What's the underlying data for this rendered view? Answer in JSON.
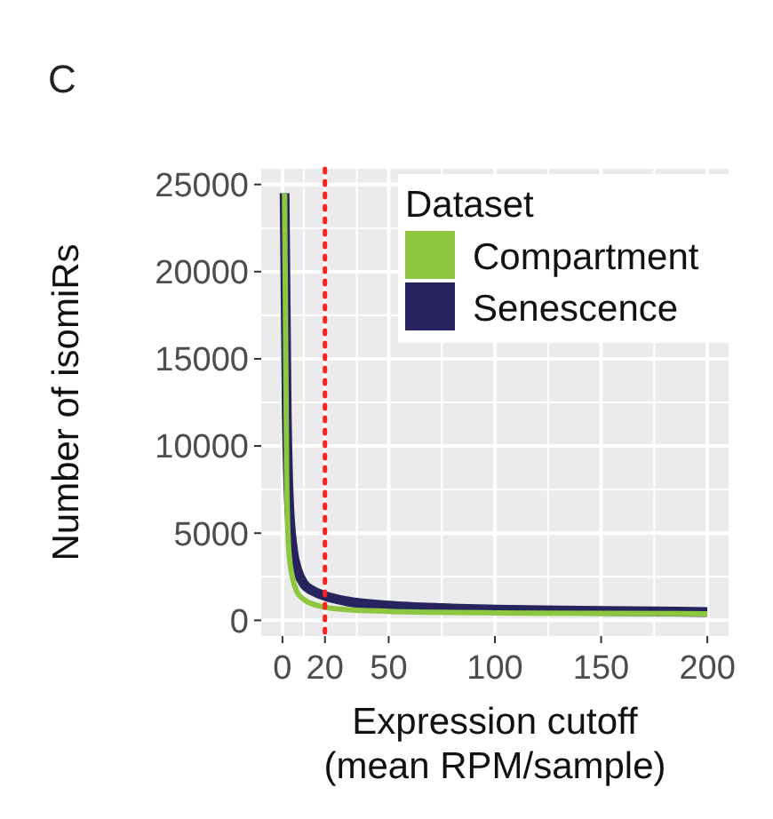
{
  "chart_data": {
    "type": "line",
    "title": "C",
    "xlabel": "Expression cutoff\n(mean RPM/sample)",
    "ylabel": "Number of isomiRs",
    "legend_title": "Dataset",
    "series": [
      {
        "name": "Compartment",
        "color": "#8dc63f",
        "x": [
          1,
          2,
          3,
          5,
          7,
          10,
          15,
          20,
          30,
          50,
          75,
          100,
          150,
          200
        ],
        "values": [
          24500,
          8000,
          4000,
          2300,
          1600,
          1200,
          900,
          750,
          620,
          520,
          460,
          430,
          400,
          380
        ]
      },
      {
        "name": "Senescence",
        "color": "#27235e",
        "x": [
          1,
          2,
          3,
          5,
          7,
          10,
          15,
          20,
          30,
          50,
          75,
          100,
          150,
          200
        ],
        "values": [
          24500,
          12000,
          7000,
          4000,
          2900,
          2100,
          1650,
          1400,
          1100,
          850,
          700,
          620,
          540,
          480
        ]
      }
    ],
    "xlim": [
      -10,
      210
    ],
    "xticks": [
      0,
      20,
      50,
      100,
      150,
      200
    ],
    "ylim": [
      -900,
      25900
    ],
    "yticks": [
      0,
      5000,
      10000,
      15000,
      20000,
      25000
    ],
    "ref_lines": [
      {
        "axis": "x",
        "value": 20,
        "color": "#ff2020",
        "line_style": "dotted"
      }
    ],
    "grid": true,
    "legend": "top right",
    "line_style": "solid",
    "marker": "none"
  }
}
